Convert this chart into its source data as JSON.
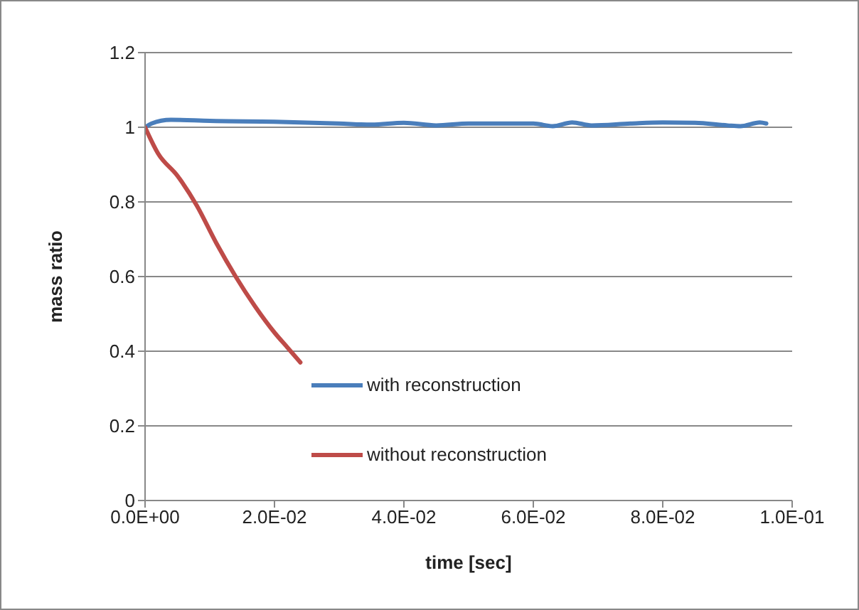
{
  "chart_data": {
    "type": "line",
    "xlabel": "time [sec]",
    "ylabel": "mass ratio",
    "xlim": [
      0,
      0.1
    ],
    "xticks": [
      {
        "value": 0,
        "label": "0.0E+00"
      },
      {
        "value": 0.02,
        "label": "2.0E-02"
      },
      {
        "value": 0.04,
        "label": "4.0E-02"
      },
      {
        "value": 0.06,
        "label": "6.0E-02"
      },
      {
        "value": 0.08,
        "label": "8.0E-02"
      },
      {
        "value": 0.1,
        "label": "1.0E-01"
      }
    ],
    "ylim": [
      0,
      1.2
    ],
    "yticks": [
      0,
      0.2,
      0.4,
      0.6,
      0.8,
      1,
      1.2
    ],
    "grid": "y",
    "legend": "bottom",
    "marker": "none",
    "line_style": "solid",
    "series": [
      {
        "name": "with reconstruction",
        "color": "#4a7ebb",
        "x": [
          0,
          0.001,
          0.004,
          0.01,
          0.02,
          0.03,
          0.035,
          0.04,
          0.045,
          0.05,
          0.06,
          0.063,
          0.066,
          0.069,
          0.075,
          0.08,
          0.085,
          0.09,
          0.092,
          0.095,
          0.096
        ],
        "values": [
          1,
          1.01,
          1.02,
          1.017,
          1.015,
          1.01,
          1.007,
          1.012,
          1.005,
          1.01,
          1.01,
          1.003,
          1.013,
          1.005,
          1.01,
          1.013,
          1.012,
          1.005,
          1.003,
          1.013,
          1.01
        ]
      },
      {
        "name": "without reconstruction",
        "color": "#be4b48",
        "x": [
          0,
          0.002,
          0.005,
          0.008,
          0.011,
          0.014,
          0.017,
          0.02,
          0.022,
          0.024
        ],
        "values": [
          1,
          0.93,
          0.87,
          0.79,
          0.69,
          0.6,
          0.52,
          0.45,
          0.41,
          0.37
        ]
      }
    ]
  }
}
